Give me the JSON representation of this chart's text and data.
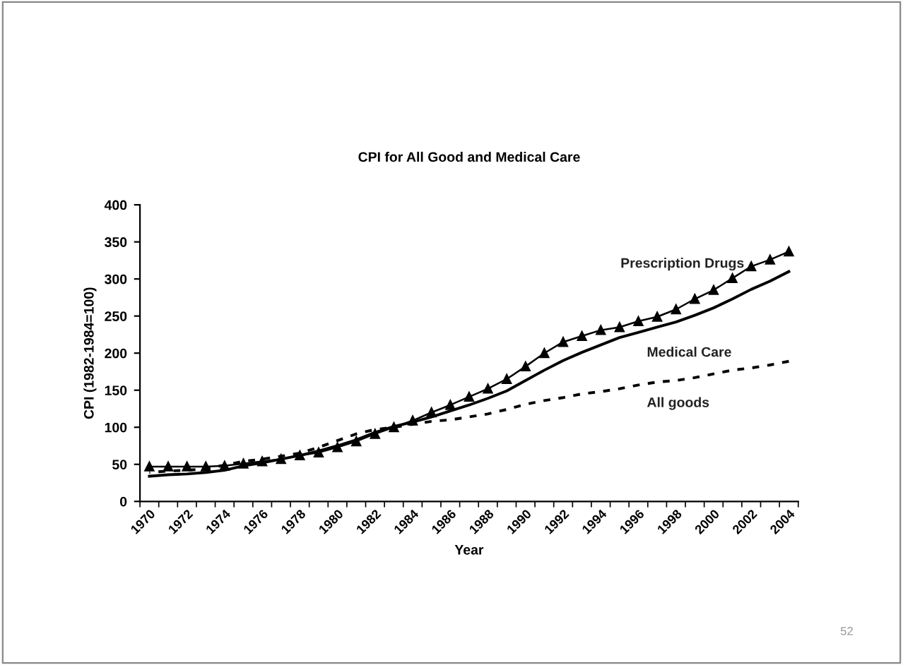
{
  "chart_data": {
    "type": "line",
    "title": "CPI for All Good and Medical Care",
    "xlabel": "Year",
    "ylabel": "CPI (1982-1984=100)",
    "categories": [
      "1970",
      null,
      "1972",
      null,
      "1974",
      null,
      "1976",
      null,
      "1978",
      null,
      "1980",
      null,
      "1982",
      null,
      "1984",
      null,
      "1986",
      null,
      "1988",
      null,
      "1990",
      null,
      "1992",
      null,
      "1994",
      null,
      "1996",
      null,
      "1998",
      null,
      "2000",
      null,
      "2002",
      null,
      "2004"
    ],
    "series": [
      {
        "name": "Prescription Drugs",
        "color": "#000000",
        "marker": "triangle",
        "line_style": "solid",
        "values": [
          47,
          47,
          47,
          47,
          48,
          51,
          54,
          57,
          62,
          66,
          73,
          81,
          91,
          100,
          109,
          120,
          130,
          141,
          152,
          165,
          182,
          200,
          215,
          223,
          231,
          235,
          243,
          249,
          259,
          273,
          285,
          301,
          317,
          326,
          337
        ]
      },
      {
        "name": "Medical Care",
        "color": "#000000",
        "marker": "none",
        "line_style": "solid",
        "values": [
          34,
          36,
          37,
          39,
          42,
          48,
          52,
          57,
          62,
          68,
          75,
          83,
          93,
          101,
          107,
          114,
          122,
          130,
          139,
          149,
          163,
          177,
          190,
          201,
          211,
          221,
          228,
          235,
          242,
          251,
          261,
          273,
          286,
          297,
          310
        ]
      },
      {
        "name": "All goods",
        "color": "#000000",
        "marker": "none",
        "line_style": "dashed",
        "values": [
          39,
          41,
          42,
          44,
          49,
          54,
          57,
          61,
          65,
          73,
          82,
          91,
          97,
          100,
          104,
          108,
          110,
          114,
          118,
          124,
          131,
          136,
          140,
          145,
          148,
          152,
          157,
          161,
          163,
          167,
          172,
          177,
          180,
          184,
          189
        ]
      }
    ],
    "ylim": [
      0,
      400
    ],
    "yticks": [
      0,
      50,
      100,
      150,
      200,
      250,
      300,
      350,
      400
    ],
    "grid": false,
    "legend": false,
    "annotations": [
      "52"
    ]
  }
}
